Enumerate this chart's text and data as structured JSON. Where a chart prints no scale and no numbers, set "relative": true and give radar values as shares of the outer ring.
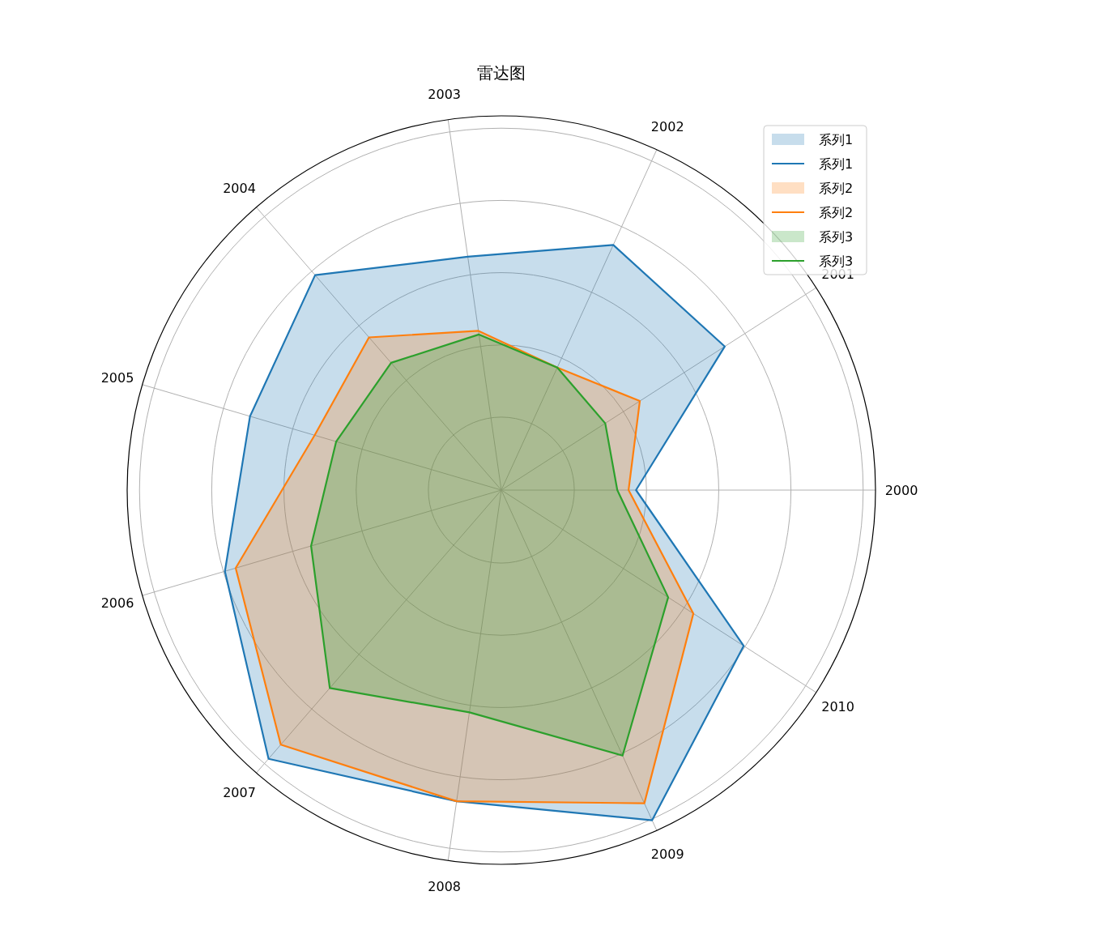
{
  "chart_data": {
    "type": "radar",
    "title": "雷达图",
    "relative": true,
    "grid": true,
    "legend": "top right",
    "categories": [
      "2003",
      "2002",
      "2001",
      "2000",
      "2010",
      "2009",
      "2008",
      "2007",
      "2006",
      "2005",
      "2004"
    ],
    "series": [
      {
        "name": "系列1",
        "color": "#1f77b4",
        "values": [
          0.63,
          0.72,
          0.71,
          0.36,
          0.77,
          0.97,
          0.84,
          0.95,
          0.77,
          0.7,
          0.76
        ]
      },
      {
        "name": "系列2",
        "color": "#ff7f0e",
        "values": [
          0.43,
          0.36,
          0.44,
          0.34,
          0.61,
          0.92,
          0.84,
          0.9,
          0.74,
          0.52,
          0.54
        ]
      },
      {
        "name": "系列3",
        "color": "#2ca02c",
        "values": [
          0.42,
          0.36,
          0.33,
          0.31,
          0.53,
          0.78,
          0.6,
          0.7,
          0.53,
          0.46,
          0.45
        ]
      }
    ]
  }
}
